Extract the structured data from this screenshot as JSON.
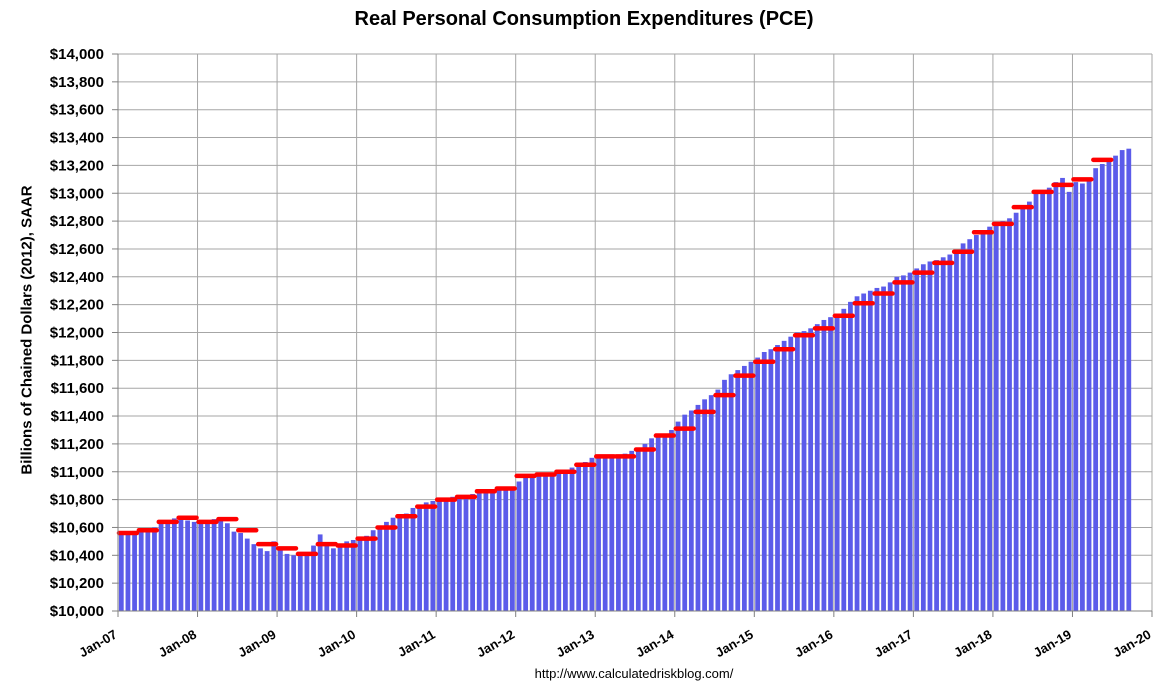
{
  "chart_data": {
    "type": "bar",
    "title": "Real Personal Consumption Expenditures (PCE)",
    "ylabel": "Billions of Chained Dollars (2012), SAAR",
    "source": "http://www.calculatedriskblog.com/",
    "ylim": [
      10000,
      14000
    ],
    "y_ticks": [
      "$10,000",
      "$10,200",
      "$10,400",
      "$10,600",
      "$10,800",
      "$11,000",
      "$11,200",
      "$11,400",
      "$11,600",
      "$11,800",
      "$12,000",
      "$12,200",
      "$12,400",
      "$12,600",
      "$12,800",
      "$13,000",
      "$13,200",
      "$13,400",
      "$13,600",
      "$13,800",
      "$14,000"
    ],
    "x_ticks": [
      "Jan-07",
      "Jan-08",
      "Jan-09",
      "Jan-10",
      "Jan-11",
      "Jan-12",
      "Jan-13",
      "Jan-14",
      "Jan-15",
      "Jan-16",
      "Jan-17",
      "Jan-18",
      "Jan-19",
      "Jan-20"
    ],
    "grid": true,
    "colors": {
      "bars": "#5b5bea",
      "quarterly": "#ff0000",
      "grid": "#a6a6a6"
    },
    "series": [
      {
        "kind": "bar",
        "start": "Jan-07",
        "frequency": "monthly",
        "values": [
          10560,
          10550,
          10575,
          10570,
          10585,
          10600,
          10630,
          10650,
          10665,
          10660,
          10650,
          10640,
          10630,
          10650,
          10660,
          10655,
          10630,
          10570,
          10560,
          10520,
          10480,
          10450,
          10430,
          10500,
          10450,
          10410,
          10400,
          10410,
          10420,
          10470,
          10550,
          10470,
          10450,
          10460,
          10500,
          10510,
          10520,
          10540,
          10580,
          10600,
          10640,
          10670,
          10680,
          10700,
          10740,
          10760,
          10780,
          10790,
          10800,
          10810,
          10820,
          10820,
          10830,
          10840,
          10850,
          10860,
          10870,
          10880,
          10880,
          10890,
          10930,
          10960,
          10980,
          10980,
          10970,
          10990,
          11000,
          11010,
          11030,
          11050,
          11070,
          11100,
          11110,
          11100,
          11100,
          11120,
          11130,
          11150,
          11170,
          11200,
          11240,
          11270,
          11250,
          11300,
          11360,
          11410,
          11440,
          11480,
          11520,
          11550,
          11590,
          11660,
          11700,
          11730,
          11760,
          11790,
          11820,
          11860,
          11880,
          11910,
          11940,
          11970,
          12000,
          12010,
          12030,
          12060,
          12090,
          12110,
          12130,
          12170,
          12220,
          12260,
          12280,
          12300,
          12320,
          12330,
          12360,
          12400,
          12410,
          12430,
          12460,
          12490,
          12510,
          12520,
          12540,
          12560,
          12580,
          12640,
          12670,
          12700,
          12720,
          12760,
          12780,
          12800,
          12820,
          12860,
          12900,
          12940,
          13000,
          13010,
          13040,
          13080,
          13110,
          13010,
          13080,
          13070,
          13110,
          13180,
          13210,
          13240,
          13270,
          13310,
          13320
        ]
      },
      {
        "kind": "quarterly-marker",
        "start": "Jan-07",
        "frequency": "quarterly",
        "values": [
          10560,
          10580,
          10640,
          10670,
          10640,
          10660,
          10580,
          10480,
          10450,
          10410,
          10480,
          10470,
          10520,
          10600,
          10680,
          10750,
          10800,
          10820,
          10860,
          10880,
          10970,
          10980,
          11000,
          11050,
          11110,
          11110,
          11160,
          11260,
          11310,
          11430,
          11550,
          11690,
          11790,
          11880,
          11980,
          12030,
          12120,
          12210,
          12280,
          12360,
          12430,
          12500,
          12580,
          12720,
          12780,
          12900,
          13010,
          13060,
          13100,
          13240
        ]
      }
    ]
  }
}
